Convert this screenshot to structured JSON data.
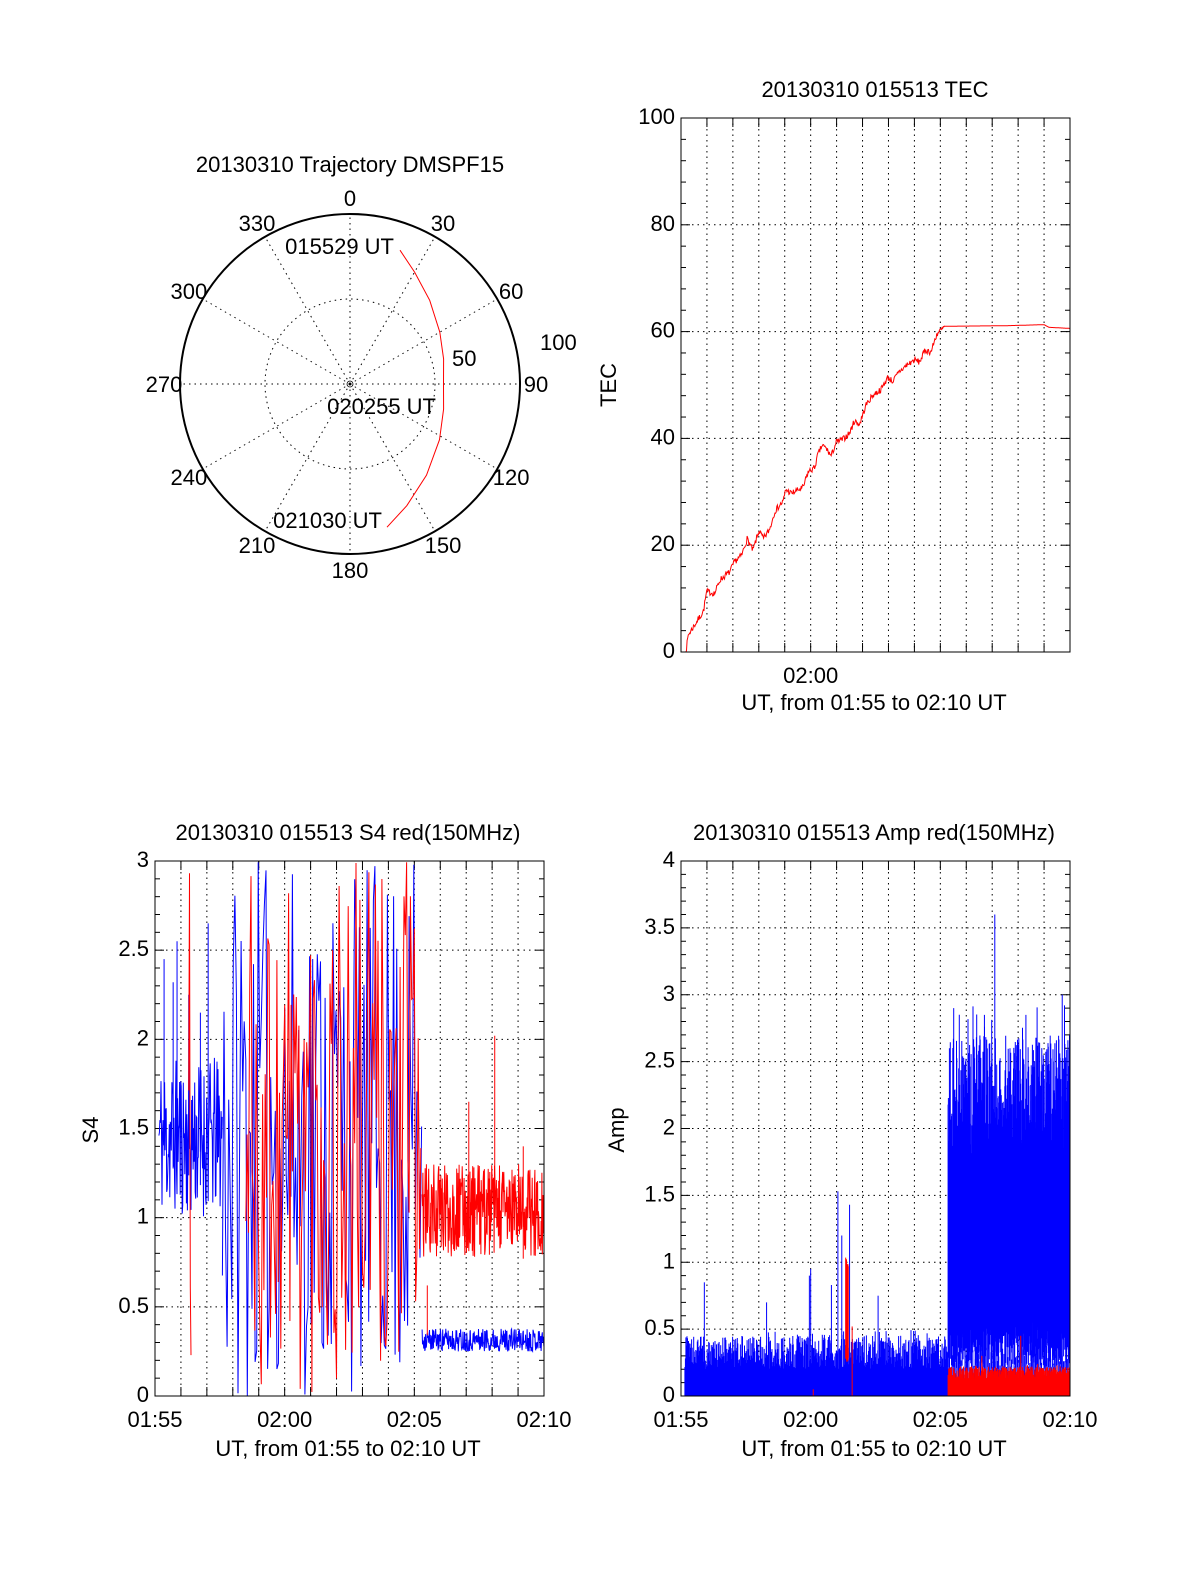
{
  "chart_data": [
    {
      "id": "trajectory",
      "type": "polar",
      "title": "20130310 Trajectory DMSPF15",
      "angle_tick_labels": [
        "0",
        "30",
        "60",
        "90",
        "120",
        "150",
        "180",
        "210",
        "240",
        "270",
        "300",
        "330"
      ],
      "angle_ticks": [
        0,
        30,
        60,
        90,
        120,
        150,
        180,
        210,
        240,
        270,
        300,
        330
      ],
      "radial_tick_labels": [
        "50",
        "100"
      ],
      "radial_ticks": [
        50,
        100
      ],
      "rmax": 100,
      "grid": true,
      "series": [
        {
          "name": "trajectory",
          "color": "#ff0000",
          "azimuth": [
            20.5,
            30,
            43.6,
            60,
            75,
            90,
            105,
            121.9,
            140,
            155,
            165.5
          ],
          "radius": [
            84,
            76,
            68,
            61,
            57,
            55,
            57,
            62,
            70,
            79,
            87
          ]
        }
      ],
      "annotations": [
        "015529 UT",
        "020255 UT",
        "021030 UT"
      ]
    },
    {
      "id": "tec",
      "type": "line",
      "title": "20130310 015513 TEC",
      "xlabel": "UT, from 01:55 to 02:10 UT",
      "ylabel": "TEC",
      "x_units": "minutes after 01:55",
      "xlim": [
        0,
        15
      ],
      "ylim": [
        0,
        100
      ],
      "yticks": [
        0,
        20,
        40,
        60,
        80,
        100
      ],
      "ytick_labels": [
        "0",
        "20",
        "40",
        "60",
        "80",
        "100"
      ],
      "xticks": [
        5
      ],
      "xtick_labels": [
        "02:00"
      ],
      "grid": true,
      "series": [
        {
          "name": "TEC",
          "color": "#ff0000",
          "x": [
            0.19,
            0.28,
            0.86,
            0.99,
            1.3,
            1.5,
            1.88,
            2.08,
            2.33,
            2.55,
            2.77,
            3.01,
            3.18,
            3.42,
            3.62,
            3.94,
            4.04,
            4.26,
            4.71,
            4.9,
            5.15,
            5.28,
            5.45,
            5.6,
            5.79,
            5.99,
            6.24,
            6.5,
            6.69,
            6.88,
            7.14,
            7.4,
            7.72,
            7.97,
            8.17,
            8.42,
            8.68,
            9.0,
            9.19,
            9.42,
            9.64,
            9.86,
            10.19,
            12.5,
            14.0,
            14.19,
            15.0
          ],
          "y": [
            0,
            3.2,
            7.6,
            11.3,
            11,
            13.5,
            15,
            17,
            18,
            21.2,
            19,
            22.7,
            21.2,
            23,
            26.4,
            28.2,
            30.4,
            29.7,
            30.8,
            33.7,
            34.5,
            37,
            38.7,
            38.1,
            36.7,
            39.3,
            39.8,
            41,
            43.3,
            42.6,
            46.3,
            48.1,
            49.2,
            51.4,
            50.7,
            52.5,
            53.6,
            54.7,
            54.3,
            56.5,
            56.2,
            59.5,
            61,
            61.1,
            61.3,
            60.8,
            60.6
          ]
        }
      ]
    },
    {
      "id": "s4",
      "type": "line",
      "title": "20130310 015513 S4 red(150MHz)",
      "xlabel": "UT, from 01:55 to 02:10 UT",
      "ylabel": "S4",
      "x_units": "minutes after 01:55",
      "xlim": [
        0,
        15
      ],
      "ylim": [
        0,
        3
      ],
      "yticks": [
        0,
        0.5,
        1,
        1.5,
        2,
        2.5,
        3
      ],
      "ytick_labels": [
        "0",
        "0.5",
        "1",
        "1.5",
        "2",
        "2.5",
        "3"
      ],
      "xticks": [
        0,
        5,
        10,
        15
      ],
      "xtick_labels": [
        "01:55",
        "02:00",
        "02:05",
        "02:10"
      ],
      "grid": true,
      "series": [
        {
          "name": "S4 blue",
          "color": "#0000ff",
          "segments": [
            {
              "mode": "trace",
              "t": [
                0.15,
                2.6
              ],
              "range": [
                1.0,
                1.9
              ],
              "step": 0.02
            },
            {
              "mode": "trace",
              "t": [
                2.6,
                10.3
              ],
              "range": [
                0,
                3
              ],
              "step": 0.06
            },
            {
              "mode": "trace",
              "t": [
                10.3,
                15
              ],
              "range": [
                0.25,
                0.38
              ],
              "step": 0.015
            }
          ],
          "spikes": [
            [
              0.35,
              2.45
            ],
            [
              0.7,
              2.32
            ],
            [
              0.85,
              2.55
            ],
            [
              1.3,
              2.25
            ],
            [
              2.05,
              2.65
            ],
            [
              1.75,
              2.15
            ]
          ]
        },
        {
          "name": "S4 red",
          "color": "#ff0000",
          "segments": [
            {
              "mode": "trace",
              "t": [
                1.3,
                1.42
              ],
              "range": [
                0,
                3
              ],
              "step": 0.03
            },
            {
              "mode": "trace",
              "t": [
                3.5,
                10.3
              ],
              "range": [
                0,
                3
              ],
              "step": 0.05
            },
            {
              "mode": "trace",
              "t": [
                10.3,
                15
              ],
              "range": [
                0.78,
                1.3
              ],
              "step": 0.015
            }
          ],
          "spikes": [
            [
              12.1,
              1.65
            ],
            [
              13.1,
              2.02
            ],
            [
              10.5,
              0.62
            ],
            [
              14.2,
              1.4
            ]
          ]
        }
      ]
    },
    {
      "id": "amp",
      "type": "line",
      "title": "20130310 015513 Amp red(150MHz)",
      "xlabel": "UT, from 01:55 to 02:10 UT",
      "ylabel": "Amp",
      "x_units": "minutes after 01:55",
      "xlim": [
        0,
        15
      ],
      "ylim": [
        0,
        4
      ],
      "yticks": [
        0,
        0.5,
        1,
        1.5,
        2,
        2.5,
        3,
        3.5,
        4
      ],
      "ytick_labels": [
        "0",
        "0.5",
        "1",
        "1.5",
        "2",
        "2.5",
        "3",
        "3.5",
        "4"
      ],
      "xticks": [
        0,
        5,
        10,
        15
      ],
      "xtick_labels": [
        "01:55",
        "02:00",
        "02:05",
        "02:10"
      ],
      "grid": true,
      "series": [
        {
          "name": "Amp blue",
          "color": "#0000ff",
          "segments": [
            {
              "mode": "band",
              "t": [
                0.15,
                10.3
              ],
              "lo": [
                0,
                0
              ],
              "hi": [
                0.2,
                0.45
              ],
              "step": 0.02
            },
            {
              "mode": "band",
              "t": [
                10.3,
                15
              ],
              "lo": [
                0.2,
                0.55
              ],
              "hi": [
                1.8,
                2.7
              ],
              "step": 0.012
            },
            {
              "mode": "band",
              "t": [
                10.3,
                15
              ],
              "lo": [
                0,
                0
              ],
              "hi": [
                0.2,
                0.4
              ],
              "step": 0.05
            }
          ],
          "spikes": [
            [
              6.05,
              1.53
            ],
            [
              6.2,
              1.2
            ],
            [
              6.5,
              1.43
            ],
            [
              5.0,
              0.95
            ],
            [
              4.95,
              0.9
            ],
            [
              0.9,
              0.85
            ],
            [
              7.6,
              0.75
            ],
            [
              3.3,
              0.7
            ],
            [
              5.8,
              0.83
            ],
            [
              12.1,
              3.6
            ],
            [
              14.7,
              3.0
            ],
            [
              13.3,
              2.85
            ],
            [
              11.7,
              2.85
            ],
            [
              10.35,
              2.6
            ]
          ]
        },
        {
          "name": "Amp red",
          "color": "#ff0000",
          "segments": [
            {
              "mode": "band",
              "t": [
                10.3,
                15
              ],
              "lo": [
                0,
                0
              ],
              "hi": [
                0.12,
                0.22
              ],
              "step": 0.012
            },
            {
              "mode": "band",
              "t": [
                6.35,
                6.45
              ],
              "lo": [
                0.25,
                0.3
              ],
              "hi": [
                0.9,
                1.05
              ],
              "step": 0.01
            }
          ],
          "spikes": [
            [
              13.1,
              0.45
            ],
            [
              11.6,
              0.3
            ],
            [
              6.6,
              0.52
            ],
            [
              5.1,
              0.05
            ]
          ]
        }
      ]
    }
  ]
}
